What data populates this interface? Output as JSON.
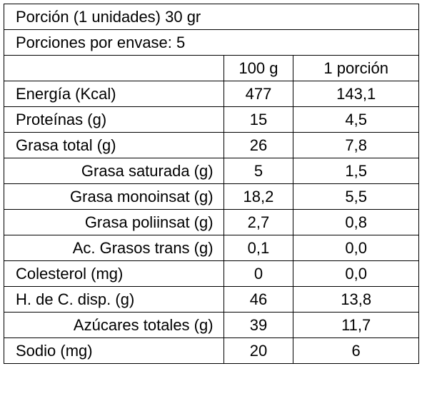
{
  "header": {
    "portion": "Porción (1 unidades) 30 gr",
    "servings": "Porciones por envase:  5"
  },
  "table": {
    "columns": [
      "100 g",
      "1 porción"
    ],
    "rows": [
      [
        "Energía (Kcal)",
        "477",
        "143,1"
      ],
      [
        "Proteínas (g)",
        "15",
        "4,5"
      ],
      [
        "Grasa total (g)",
        "26",
        "7,8"
      ],
      [
        "Grasa saturada (g)",
        "5",
        "1,5"
      ],
      [
        "Grasa monoinsat (g)",
        "18,2",
        "5,5"
      ],
      [
        "Grasa poliinsat (g)",
        "2,7",
        "0,8"
      ],
      [
        "Ac. Grasos trans (g)",
        "0,1",
        "0,0"
      ],
      [
        "Colesterol (mg)",
        "0",
        "0,0"
      ],
      [
        "H. de C. disp. (g)",
        "46",
        "13,8"
      ],
      [
        "Azúcares totales (g)",
        "39",
        "11,7"
      ],
      [
        "Sodio (mg)",
        "20",
        "6"
      ]
    ]
  }
}
